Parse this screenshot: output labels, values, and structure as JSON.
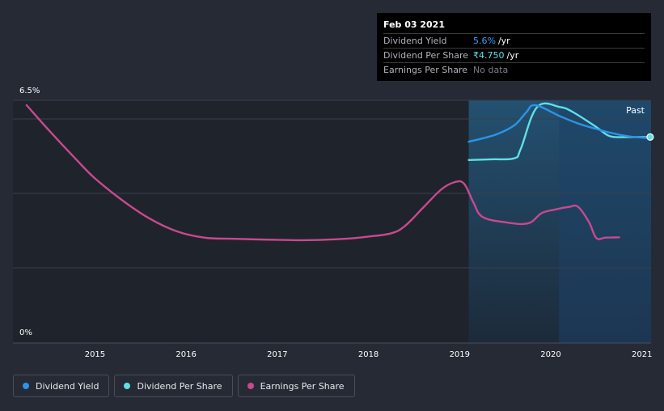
{
  "colors": {
    "dividend_yield": "#2e93e6",
    "dividend_per_share": "#5ee0e6",
    "earnings_per_share": "#c8498f"
  },
  "tooltip": {
    "date": "Feb 03 2021",
    "rows": [
      {
        "label": "Dividend Yield",
        "value": "5.6%",
        "unit": "/yr",
        "color": "#3a9fff"
      },
      {
        "label": "Dividend Per Share",
        "value": "₹4.750",
        "unit": "/yr",
        "color": "#5ee0e6"
      },
      {
        "label": "Earnings Per Share",
        "value": "No data",
        "unit": "",
        "color": "#7a7e88"
      }
    ]
  },
  "legend": [
    {
      "label": "Dividend Yield"
    },
    {
      "label": "Dividend Per Share"
    },
    {
      "label": "Earnings Per Share"
    }
  ],
  "chart_data": {
    "type": "line",
    "y_tick_labels": [
      "6.5%",
      "0%"
    ],
    "x_tick_labels": [
      "2015",
      "2016",
      "2017",
      "2018",
      "2019",
      "2020",
      "2021"
    ],
    "past_label": "Past",
    "ylim": [
      0,
      6.5
    ],
    "xlim": [
      2014.1,
      2021.1
    ],
    "grid": true,
    "legend_position": "bottom-left",
    "series": [
      {
        "name": "Dividend Yield",
        "x": [
          2019.1,
          2019.4,
          2019.6,
          2019.73,
          2019.83,
          2020.1,
          2020.3,
          2020.5,
          2020.65,
          2020.85,
          2021.09
        ],
        "y": [
          5.5,
          5.7,
          5.95,
          6.3,
          6.5,
          6.2,
          6.0,
          5.85,
          5.75,
          5.65,
          5.6
        ]
      },
      {
        "name": "Dividend Per Share",
        "x": [
          2019.1,
          2019.35,
          2019.6,
          2019.67,
          2019.85,
          2020.1,
          2020.25,
          2020.5,
          2020.65,
          2020.85,
          2021.09
        ],
        "y": [
          5.0,
          5.02,
          5.05,
          5.3,
          6.45,
          6.45,
          6.3,
          5.9,
          5.65,
          5.63,
          5.63
        ]
      },
      {
        "name": "Earnings Per Share",
        "x": [
          2014.25,
          2014.5,
          2014.8,
          2015.0,
          2015.3,
          2015.6,
          2015.9,
          2016.2,
          2016.5,
          2016.8,
          2017.0,
          2017.25,
          2017.5,
          2017.75,
          2018.0,
          2018.25,
          2018.4,
          2018.6,
          2018.8,
          2018.95,
          2019.05,
          2019.15,
          2019.25,
          2019.5,
          2019.75,
          2019.9,
          2020.05,
          2020.2,
          2020.3,
          2020.42,
          2020.5,
          2020.6,
          2020.75
        ],
        "y": [
          6.5,
          5.8,
          5.0,
          4.5,
          3.9,
          3.4,
          3.05,
          2.88,
          2.85,
          2.83,
          2.82,
          2.81,
          2.82,
          2.85,
          2.91,
          3.0,
          3.2,
          3.7,
          4.2,
          4.4,
          4.35,
          3.85,
          3.45,
          3.3,
          3.27,
          3.55,
          3.65,
          3.72,
          3.72,
          3.3,
          2.87,
          2.88,
          2.89
        ]
      }
    ]
  }
}
